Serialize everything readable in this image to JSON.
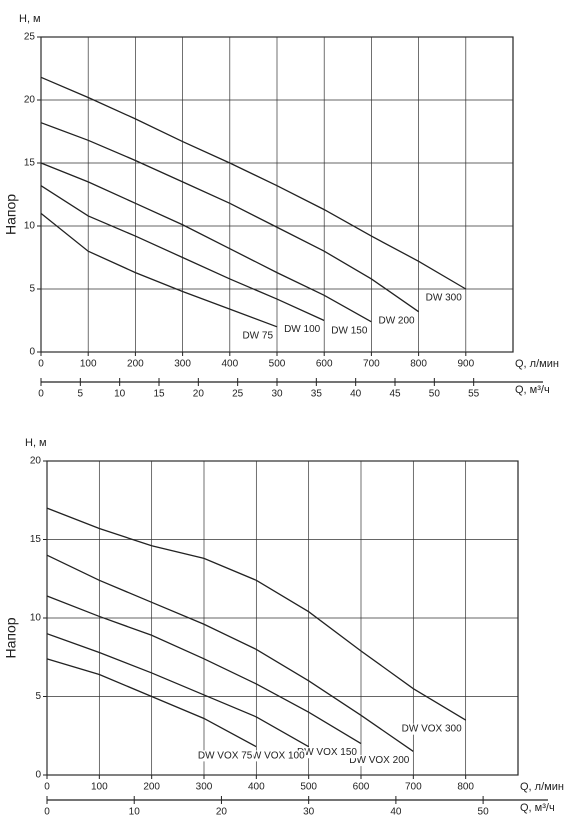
{
  "chart_data": [
    {
      "type": "line",
      "y_label_top": "H, м",
      "ylabel": "Напор",
      "xlabel": "Q, л/мин",
      "x2label": "Q, м³/ч",
      "x": [
        0,
        100,
        200,
        300,
        400,
        500,
        600,
        700,
        800,
        900
      ],
      "series": [
        {
          "name": "DW 300",
          "color": "#222222",
          "values": [
            21.8,
            20.2,
            18.5,
            16.7,
            15,
            13.2,
            11.3,
            9.2,
            7.2,
            5
          ]
        },
        {
          "name": "DW 200",
          "color": "#222222",
          "values": [
            18.2,
            16.8,
            15.2,
            13.5,
            11.8,
            9.9,
            8,
            5.8,
            3.2,
            null
          ]
        },
        {
          "name": "DW 150",
          "color": "#222222",
          "values": [
            15,
            13.5,
            11.8,
            10.1,
            8.2,
            6.3,
            4.5,
            2.4,
            null,
            null
          ]
        },
        {
          "name": "DW 100",
          "color": "#222222",
          "values": [
            13.2,
            10.8,
            9.2,
            7.5,
            5.8,
            4.2,
            2.5,
            null,
            null,
            null
          ]
        },
        {
          "name": "DW 75",
          "color": "#222222",
          "values": [
            11,
            8,
            6.3,
            4.8,
            3.4,
            2,
            null,
            null,
            null,
            null
          ]
        }
      ],
      "xlim": [
        0,
        1000
      ],
      "xticks": [
        0,
        100,
        200,
        300,
        400,
        500,
        600,
        700,
        800,
        900
      ],
      "ylim": [
        0,
        25
      ],
      "yticks": [
        0,
        5,
        10,
        15,
        20,
        25
      ],
      "x2lim": [
        0,
        60
      ],
      "x2ticks": [
        0,
        5,
        10,
        15,
        20,
        25,
        30,
        35,
        40,
        45,
        50,
        55
      ],
      "grid": true
    },
    {
      "type": "line",
      "y_label_top": "H, м",
      "ylabel": "Напор",
      "xlabel": "Q, л/мин",
      "x2label": "Q, м³/ч",
      "x": [
        0,
        100,
        200,
        300,
        400,
        500,
        600,
        700,
        800
      ],
      "series": [
        {
          "name": "DW VOX 300",
          "color": "#222222",
          "values": [
            17,
            15.7,
            14.6,
            13.8,
            12.4,
            10.4,
            7.9,
            5.5,
            3.5
          ]
        },
        {
          "name": "DW VOX 200",
          "color": "#222222",
          "values": [
            14,
            12.4,
            11,
            9.6,
            8,
            6,
            3.8,
            1.5,
            null
          ]
        },
        {
          "name": "DW VOX 150",
          "color": "#222222",
          "values": [
            11.4,
            10.1,
            8.9,
            7.4,
            5.8,
            4,
            2,
            null,
            null
          ]
        },
        {
          "name": "DW VOX 100",
          "color": "#222222",
          "values": [
            9,
            7.8,
            6.5,
            5.1,
            3.7,
            1.8,
            null,
            null,
            null
          ]
        },
        {
          "name": "DW VOX 75",
          "color": "#222222",
          "values": [
            7.4,
            6.4,
            5,
            3.6,
            1.8,
            null,
            null,
            null,
            null
          ]
        }
      ],
      "xlim": [
        0,
        900
      ],
      "xticks": [
        0,
        100,
        200,
        300,
        400,
        500,
        600,
        700,
        800
      ],
      "ylim": [
        0,
        20
      ],
      "yticks": [
        0,
        5,
        10,
        15,
        20
      ],
      "x2lim": [
        0,
        54
      ],
      "x2ticks": [
        0,
        10,
        20,
        30,
        40,
        50
      ],
      "grid": true
    }
  ]
}
